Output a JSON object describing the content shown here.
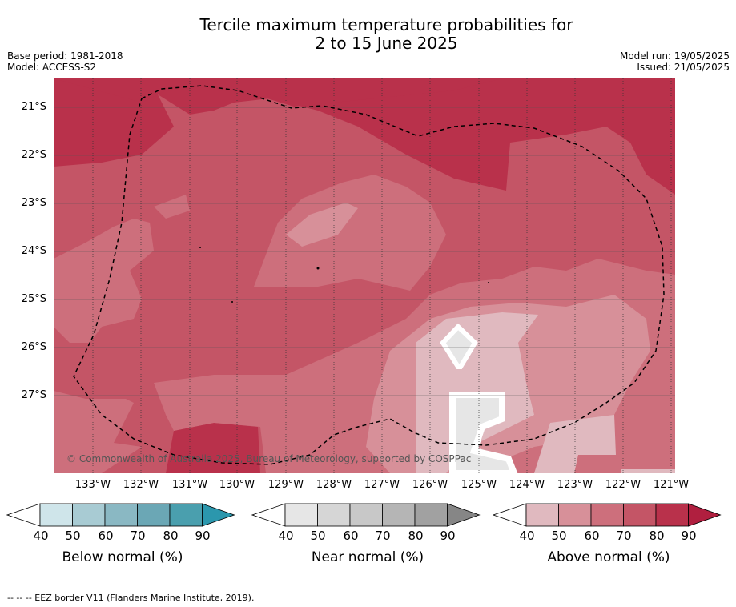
{
  "title": {
    "line1": "Tercile maximum temperature probabilities for",
    "line2": "2 to 15 June 2025"
  },
  "meta": {
    "base_period": "Base period: 1981-2018",
    "model": "Model: ACCESS-S2",
    "model_run": "Model run: 19/05/2025",
    "issued": "Issued: 21/05/2025"
  },
  "map": {
    "copyright": "© Commonwealth of Australia 2025, Bureau of Meteorology, supported by COSPPac",
    "lat_labels": [
      "21°S",
      "22°S",
      "23°S",
      "24°S",
      "25°S",
      "26°S",
      "27°S"
    ],
    "lon_labels": [
      "133°W",
      "132°W",
      "131°W",
      "130°W",
      "129°W",
      "128°W",
      "127°W",
      "126°W",
      "125°W",
      "124°W",
      "123°W",
      "122°W",
      "121°W"
    ],
    "colors": {
      "above_80": "#b9314b",
      "above_70": "#c45566",
      "above_60": "#cd6f7c",
      "above_50": "#d79099",
      "above_40": "#e0b9bf",
      "near_40": "#e6e6e6",
      "island_outline": "#ffffff",
      "eez_border": "#000000"
    }
  },
  "colorbars": [
    {
      "title": "Below normal (%)",
      "ticks": [
        "40",
        "50",
        "60",
        "70",
        "80",
        "90"
      ],
      "colors": [
        "#cfe5ea",
        "#a8cbd3",
        "#8ab8c3",
        "#6ba7b5",
        "#4a9fae",
        "#2b97ad"
      ]
    },
    {
      "title": "Near normal (%)",
      "ticks": [
        "40",
        "50",
        "60",
        "70",
        "80",
        "90"
      ],
      "colors": [
        "#e6e6e6",
        "#d6d6d6",
        "#c8c8c8",
        "#b5b5b5",
        "#a1a1a1",
        "#868686"
      ]
    },
    {
      "title": "Above normal (%)",
      "ticks": [
        "40",
        "50",
        "60",
        "70",
        "80",
        "90"
      ],
      "colors": [
        "#e0b9bf",
        "#d79099",
        "#cd6f7c",
        "#c45566",
        "#b9314b",
        "#b01f3f"
      ]
    }
  ],
  "footer": "--  --  -- EEZ border V11 (Flanders Marine Institute, 2019)."
}
